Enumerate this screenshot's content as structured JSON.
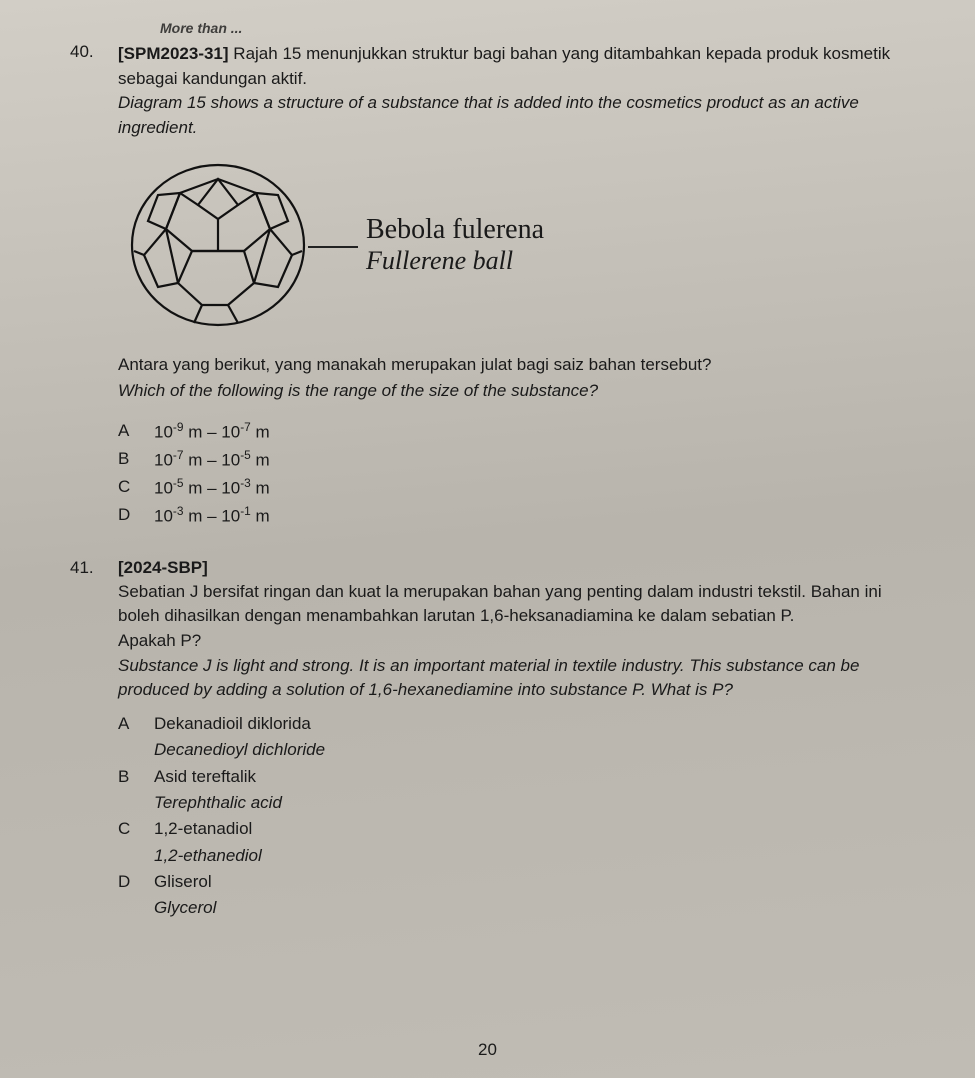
{
  "cutoff": "More than ...",
  "q40": {
    "number": "40.",
    "tag": "[SPM2023-31]",
    "lead_ms": "Rajah 15 menunjukkan struktur bagi bahan yang ditambahkan kepada produk kosmetik sebagai kandungan aktif.",
    "lead_en": "Diagram 15 shows a structure of a substance that is added into the cosmetics product as an active ingredient.",
    "diagram_label_ms": "Bebola fulerena",
    "diagram_label_en": "Fullerene ball",
    "follow_ms": "Antara yang berikut, yang manakah merupakan julat bagi saiz bahan tersebut?",
    "follow_en": "Which of the following is the range of the size of the substance?",
    "options": [
      {
        "letter": "A",
        "e1": "-9",
        "e2": "-7"
      },
      {
        "letter": "B",
        "e1": "-7",
        "e2": "-5"
      },
      {
        "letter": "C",
        "e1": "-5",
        "e2": "-3"
      },
      {
        "letter": "D",
        "e1": "-3",
        "e2": "-1"
      }
    ]
  },
  "q41": {
    "number": "41.",
    "tag": "[2024-SBP]",
    "lead_ms": "Sebatian J bersifat ringan dan kuat la merupakan bahan yang penting dalam industri tekstil. Bahan ini boleh dihasilkan dengan menambahkan larutan 1,6-heksanadiamina ke dalam sebatian P.",
    "ask_ms": "Apakah P?",
    "lead_en": "Substance J is light and strong. It is an important material in textile industry. This substance can be produced by adding a solution of 1,6-hexanediamine into substance P. What is P?",
    "options": [
      {
        "letter": "A",
        "ms": "Dekanadioil diklorida",
        "en": "Decanedioyl dichloride"
      },
      {
        "letter": "B",
        "ms": "Asid tereftalik",
        "en": "Terephthalic acid"
      },
      {
        "letter": "C",
        "ms": "1,2-etanadiol",
        "en": "1,2-ethanediol"
      },
      {
        "letter": "D",
        "ms": "Gliserol",
        "en": "Glycerol"
      }
    ]
  },
  "page_number": "20",
  "colors": {
    "text": "#1a1a1a",
    "background": "#c4c0b9",
    "line": "#222222"
  }
}
